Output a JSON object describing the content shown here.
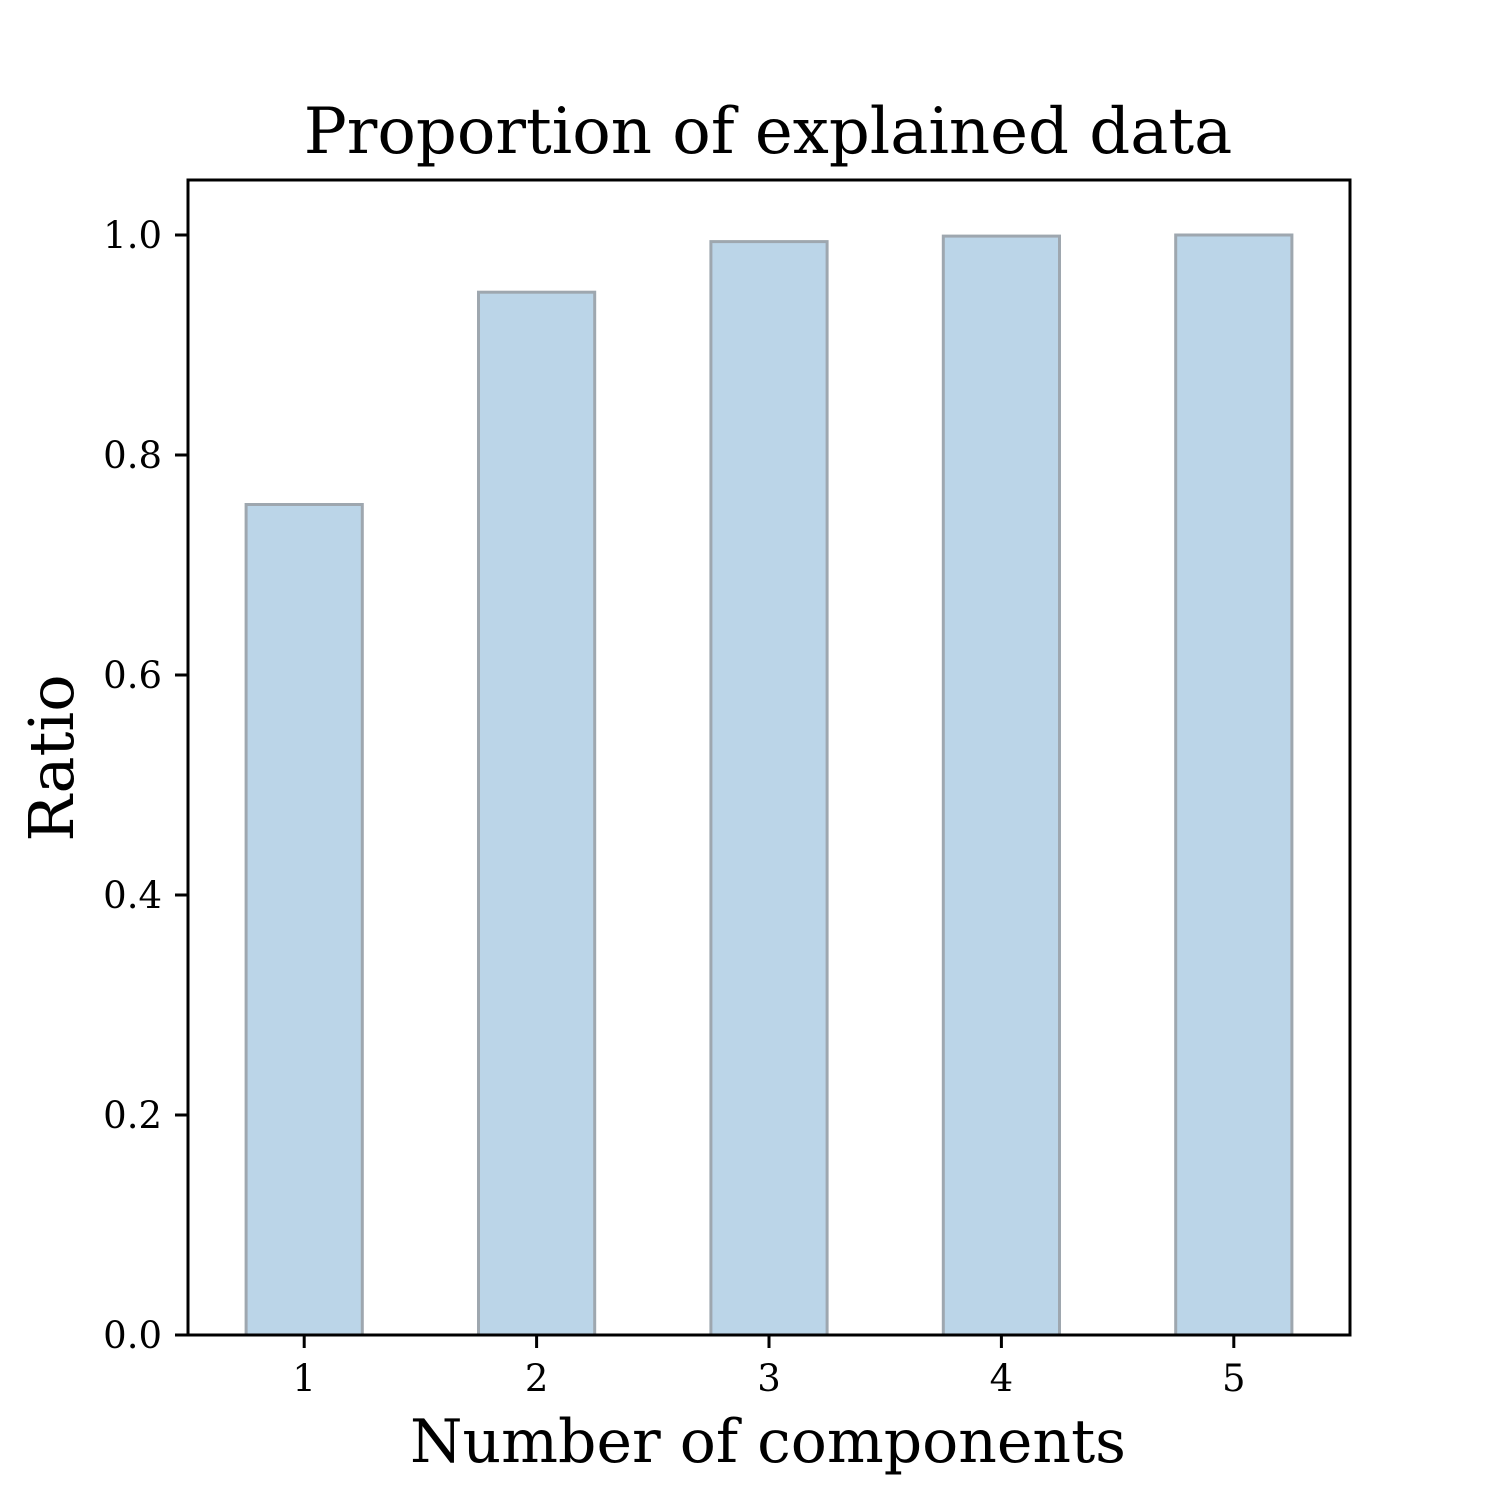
{
  "chart_data": {
    "type": "bar",
    "title": "Proportion of explained data",
    "xlabel": "Number of components",
    "ylabel": "Ratio",
    "categories": [
      "1",
      "2",
      "3",
      "4",
      "5"
    ],
    "values": [
      0.755,
      0.948,
      0.994,
      0.999,
      1.0
    ],
    "ylim": [
      0,
      1.05
    ],
    "yticks": [
      0.0,
      0.2,
      0.4,
      0.6,
      0.8,
      1.0
    ],
    "ytick_labels": [
      "0.0",
      "0.2",
      "0.4",
      "0.6",
      "0.8",
      "1.0"
    ],
    "grid": false,
    "legend": "none",
    "colors": {
      "bar_fill": "#bbd5e8",
      "bar_edge": "#9ea7af",
      "axis": "#000000"
    }
  }
}
